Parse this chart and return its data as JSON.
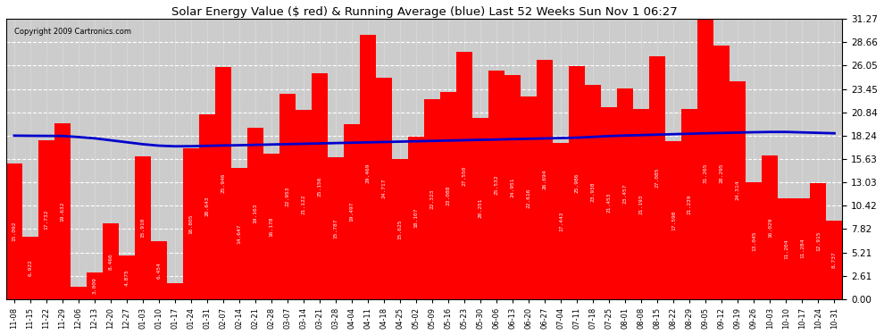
{
  "title": "Solar Energy Value ($ red) & Running Average (blue) Last 52 Weeks Sun Nov 1 06:27",
  "copyright": "Copyright 2009 Cartronics.com",
  "bar_color": "#ff0000",
  "line_color": "#0000cc",
  "background_color": "#ffffff",
  "plot_bg_color": "#cccccc",
  "grid_color": "#ffffff",
  "categories": [
    "11-08",
    "11-15",
    "11-22",
    "11-29",
    "12-06",
    "12-13",
    "12-20",
    "12-27",
    "01-03",
    "01-10",
    "01-17",
    "01-24",
    "01-31",
    "02-07",
    "02-14",
    "02-21",
    "02-28",
    "03-07",
    "03-14",
    "03-21",
    "03-28",
    "04-04",
    "04-11",
    "04-18",
    "04-25",
    "05-02",
    "05-09",
    "05-16",
    "05-23",
    "05-30",
    "06-06",
    "06-13",
    "06-20",
    "06-27",
    "07-04",
    "07-11",
    "07-18",
    "07-25",
    "08-01",
    "08-08",
    "08-15",
    "08-22",
    "08-29",
    "09-05",
    "09-12",
    "09-19",
    "09-26",
    "10-03",
    "10-10",
    "10-17",
    "10-24",
    "10-31"
  ],
  "bar_values": [
    15.092,
    6.922,
    17.732,
    19.632,
    1.369,
    3.009,
    8.466,
    4.875,
    15.91,
    6.454,
    1.772,
    16.805,
    20.643,
    25.946,
    14.647,
    19.163,
    16.178,
    22.953,
    21.122,
    25.156,
    15.787,
    19.497,
    29.469,
    24.717,
    15.625,
    18.107,
    22.323,
    23.088,
    27.55,
    20.251,
    25.532,
    24.951,
    22.616,
    26.694,
    17.443,
    25.986,
    23.938,
    21.453,
    23.457,
    21.193,
    27.085,
    17.598,
    21.239,
    31.265,
    28.295,
    24.314,
    13.045,
    16.029,
    11.204,
    11.284,
    12.915,
    8.737
  ],
  "running_avg": [
    18.24,
    18.22,
    18.21,
    18.2,
    18.08,
    17.94,
    17.72,
    17.5,
    17.28,
    17.12,
    17.05,
    17.06,
    17.1,
    17.14,
    17.17,
    17.21,
    17.25,
    17.29,
    17.33,
    17.37,
    17.41,
    17.45,
    17.49,
    17.53,
    17.57,
    17.61,
    17.65,
    17.69,
    17.73,
    17.77,
    17.81,
    17.85,
    17.89,
    17.93,
    17.97,
    18.01,
    18.1,
    18.19,
    18.25,
    18.3,
    18.35,
    18.4,
    18.45,
    18.5,
    18.54,
    18.58,
    18.62,
    18.65,
    18.65,
    18.6,
    18.55,
    18.5
  ],
  "yticks": [
    0.0,
    2.61,
    5.21,
    7.82,
    10.42,
    13.03,
    15.63,
    18.24,
    20.84,
    23.45,
    26.05,
    28.66,
    31.27
  ],
  "ylim": [
    0,
    31.27
  ]
}
